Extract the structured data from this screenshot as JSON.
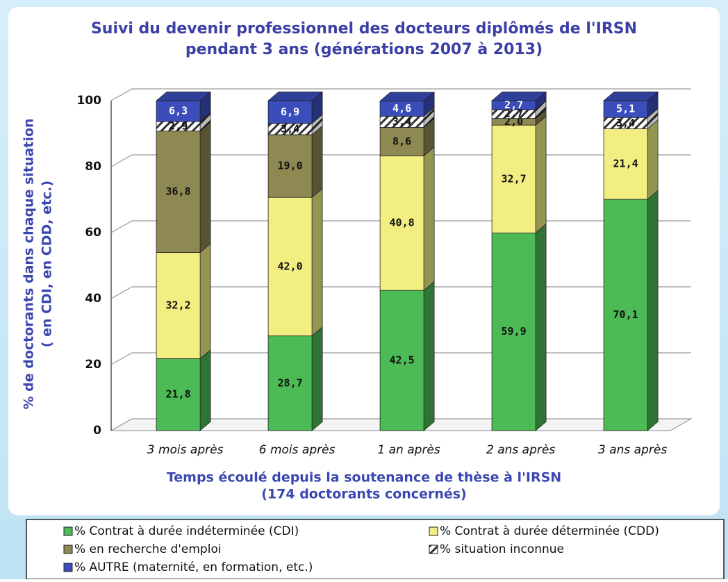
{
  "chart_data": {
    "type": "stacked_bar_3d",
    "title": [
      "Suivi du devenir professionnel des docteurs diplômés de l'IRSN",
      "pendant 3 ans (générations 2007 à 2013)"
    ],
    "y_label": [
      "% de doctorants dans chaque situation",
      "( en CDI, en CDD, etc.)"
    ],
    "x_label": [
      "Temps écoulé depuis la soutenance de thèse à l'IRSN",
      "(174 doctorants concernés)"
    ],
    "categories": [
      "3 mois après",
      "6 mois après",
      "1 an après",
      "2 ans après",
      "3 ans après"
    ],
    "series": [
      {
        "name": "% Contrat à durée indéterminée (CDI)",
        "color": "#4cbb55",
        "values": [
          21.8,
          28.7,
          42.5,
          59.9,
          70.1
        ],
        "value_labels": [
          "21,8",
          "28,7",
          "42,5",
          "59,9",
          "70,1"
        ]
      },
      {
        "name": "% Contrat à durée déterminée (CDD)",
        "color": "#f2ee82",
        "values": [
          32.2,
          42.0,
          40.8,
          32.7,
          21.4
        ],
        "value_labels": [
          "32,2",
          "42,0",
          "40,8",
          "32,7",
          "21,4"
        ]
      },
      {
        "name": "% en recherche d'emploi",
        "color": "#8e8852",
        "values": [
          36.8,
          19.0,
          8.6,
          2.0,
          0
        ],
        "value_labels": [
          "36,8",
          "19,0",
          "8,6",
          "2,0",
          null
        ]
      },
      {
        "name": "% situation inconnue",
        "color": "#ffffff",
        "hatch": true,
        "values": [
          2.9,
          3.4,
          3.4,
          2.7,
          3.4
        ],
        "value_labels": [
          "2,9",
          "3,4",
          "3,4",
          "2,7",
          "3,4"
        ]
      },
      {
        "name": "% AUTRE (maternité, en formation, etc.)",
        "color": "#3a4dbb",
        "values": [
          6.3,
          6.9,
          4.6,
          2.7,
          5.1
        ],
        "value_labels": [
          "6,3",
          "6,9",
          "4,6",
          "2,7",
          "5,1"
        ]
      }
    ],
    "ylim": [
      0,
      100
    ],
    "yticks": [
      0,
      20,
      40,
      60,
      80,
      100
    ],
    "grid": true,
    "legend": "bottom"
  }
}
